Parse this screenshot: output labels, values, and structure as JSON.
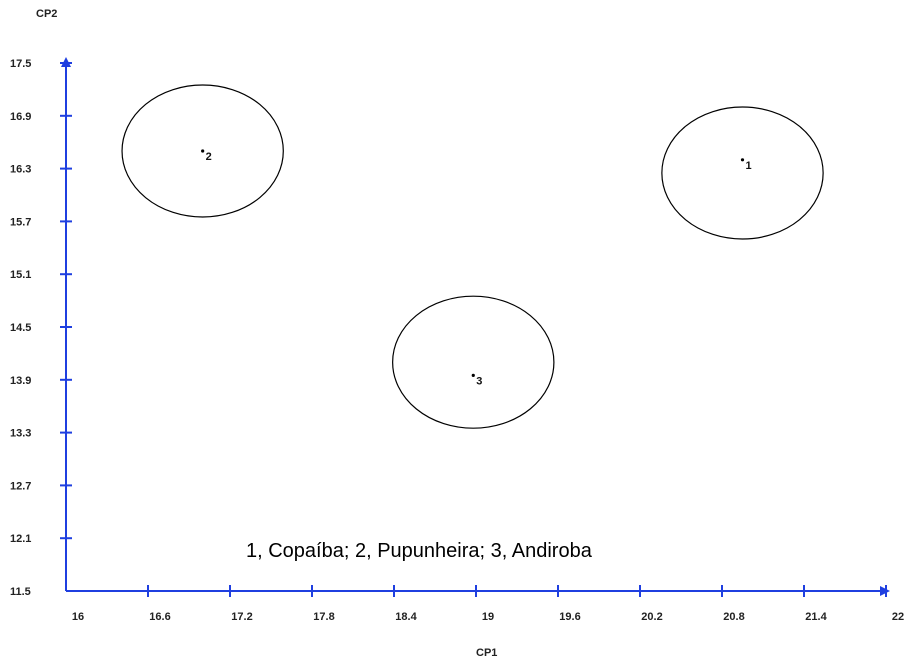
{
  "chart_data": {
    "type": "scatter",
    "xlabel": "CP1",
    "ylabel": "CP2",
    "xlim": [
      16,
      22
    ],
    "ylim": [
      11.5,
      17.5
    ],
    "x_ticks": [
      "16",
      "16.6",
      "17.2",
      "17.8",
      "18.4",
      "19",
      "19.6",
      "20.2",
      "20.8",
      "21.4",
      "22"
    ],
    "y_ticks": [
      "11.5",
      "12.1",
      "12.7",
      "13.3",
      "13.9",
      "14.5",
      "15.1",
      "15.7",
      "16.3",
      "16.9",
      "17.5"
    ],
    "points": [
      {
        "label": "1",
        "x": 20.95,
        "y": 16.4,
        "ellipse": {
          "cx": 20.95,
          "cy": 16.25,
          "rx": 0.59,
          "ry": 1.25
        }
      },
      {
        "label": "2",
        "x": 17.0,
        "y": 16.5,
        "ellipse": {
          "cx": 17.0,
          "cy": 16.5,
          "rx": 0.59,
          "ry": 1.25
        }
      },
      {
        "label": "3",
        "x": 18.98,
        "y": 13.95,
        "ellipse": {
          "cx": 18.98,
          "cy": 14.1,
          "rx": 0.59,
          "ry": 1.25
        }
      }
    ],
    "annotation": "1, Copaíba; 2, Pupunheira; 3, Andiroba",
    "grid": false,
    "axis_color": "#1f3fe0"
  }
}
